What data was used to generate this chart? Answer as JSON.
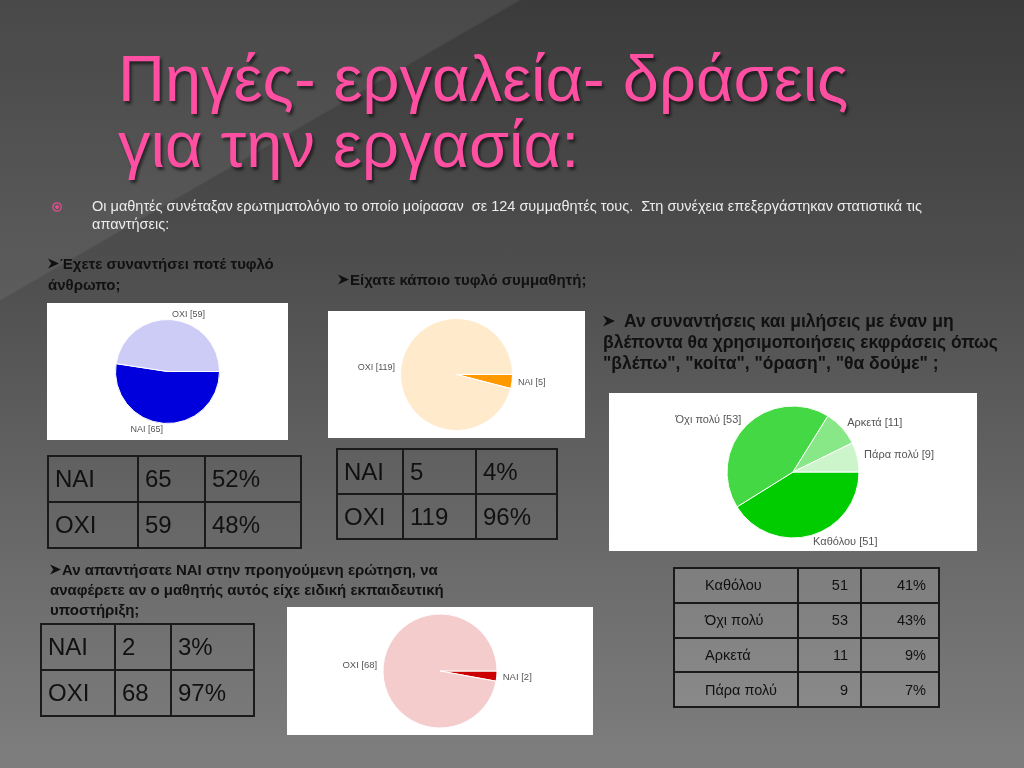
{
  "chart_data": [
    {
      "type": "other",
      "title": "Πηγές- εργαλεία- δράσεις για την εργασία:",
      "annotations": [
        "Οι μαθητές συνέταξαν ερωτηματολόγιο το οποίο μοίρασαν  σε 124 συμμαθητές τους.  Στη συνέχεια επεξεργάστηκαν στατιστικά τις απαντήσεις:"
      ]
    },
    {
      "type": "pie",
      "title": "Έχετε συναντήσει ποτέ τυφλό άνθρωπο;",
      "categories": [
        "ΝΑΙ",
        "ΟΧΙ"
      ],
      "values": [
        65,
        59
      ],
      "colors": [
        "#0000dd",
        "#ccccf7"
      ],
      "value_labels": [
        "[65]",
        "[59]"
      ],
      "annotations": [
        "65",
        "52%",
        "59",
        "48%"
      ]
    },
    {
      "type": "pie",
      "title": "Είχατε κάποιο τυφλό συμμαθητή;",
      "categories": [
        "ΝΑΙ",
        "ΟΧΙ"
      ],
      "values": [
        5,
        119
      ],
      "colors": [
        "#ff9900",
        "#ffeacc"
      ],
      "value_labels": [
        "[5]",
        "[119]"
      ],
      "annotations": [
        "5",
        "4%",
        "119",
        "96%"
      ]
    },
    {
      "type": "pie",
      "title": "Αν συναντήσεις και μιλήσεις με έναν μη βλέποντα θα χρησιμοποιήσεις εκφράσεις όπως \"βλέπω\", \"κοίτα\", \"όραση\", \"θα δούμε\" ;",
      "categories": [
        "Καθόλου",
        "Όχι πολύ",
        "Αρκετά",
        "Πάρα πολύ"
      ],
      "values": [
        51,
        53,
        11,
        9
      ],
      "colors": [
        "#00cc00",
        "#44d944",
        "#88e888",
        "#ccf5cc"
      ],
      "value_labels": [
        "[51]",
        "[53]",
        "[11]",
        "[9]"
      ],
      "annotations": [
        "51",
        "41%",
        "53",
        "43%",
        "11",
        "9%",
        "9",
        "7%"
      ]
    },
    {
      "type": "pie",
      "title": "Αν απαντήσατε ΝΑΙ στην προηγούμενη ερώτηση, να αναφέρετε αν ο μαθητής αυτός είχε ειδική εκπαιδευτική υποστήριξη;",
      "categories": [
        "ΝΑΙ",
        "ΟΧΙ"
      ],
      "values": [
        2,
        68
      ],
      "colors": [
        "#cc0000",
        "#f5cccc"
      ],
      "value_labels": [
        "[2]",
        "[68]"
      ],
      "annotations": [
        "2",
        "3%",
        "68",
        "97%"
      ]
    }
  ]
}
